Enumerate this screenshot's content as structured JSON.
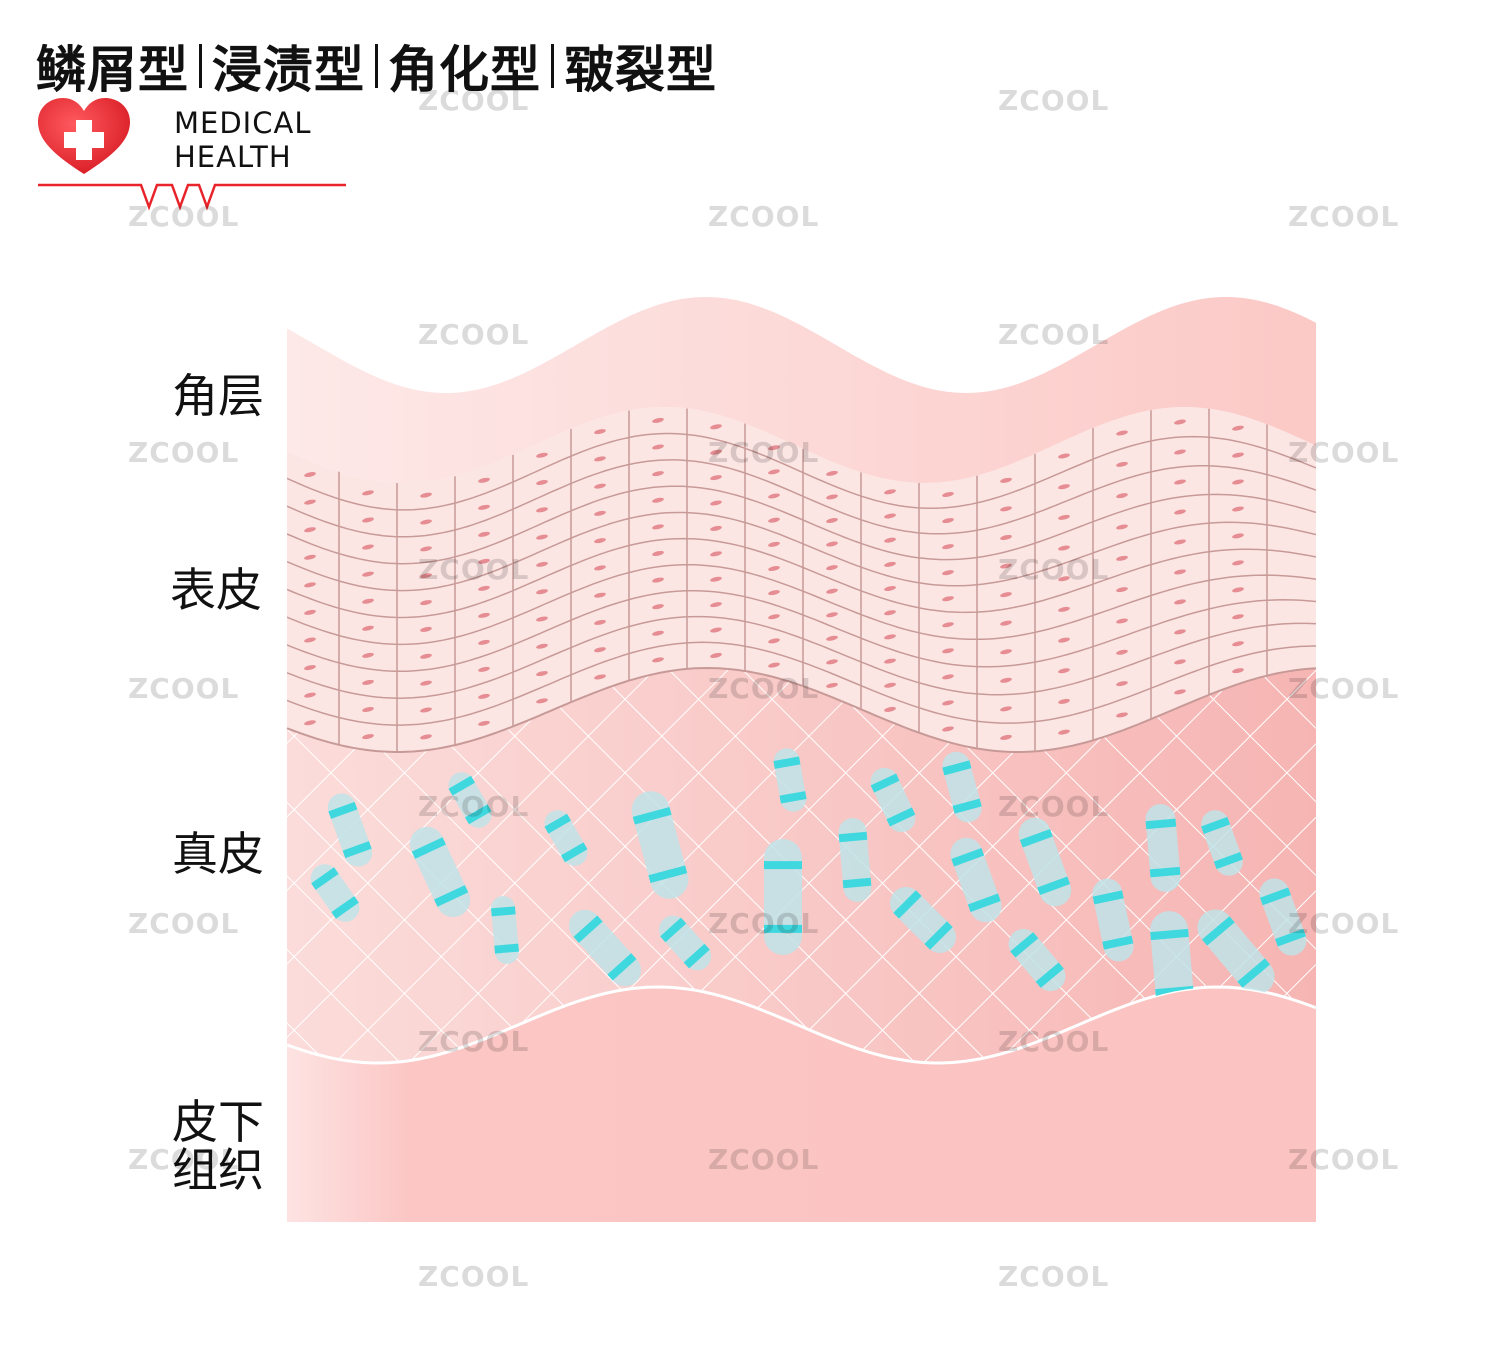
{
  "title": {
    "parts": [
      "鳞屑型",
      "浸渍型",
      "角化型",
      "皲裂型"
    ]
  },
  "logo": {
    "line1": "MEDICAL",
    "line2": "HEALTH",
    "icon": "heart-cross-icon",
    "accent_color": "#e8242a"
  },
  "layers": [
    {
      "label": "角层"
    },
    {
      "label": "表皮"
    },
    {
      "label": "真皮"
    },
    {
      "label": "皮下\n组织"
    }
  ],
  "watermark": "ZCOOL",
  "colors": {
    "stratum_corneum": "#fbd9d6",
    "epidermis": "#fce7e5",
    "epidermis_lines": "#c79a97",
    "nucleus": "#e58d92",
    "dermis": "#f9c2c0",
    "subcutaneous": "#fbc3c1",
    "fiber": "#5fe0e6"
  }
}
